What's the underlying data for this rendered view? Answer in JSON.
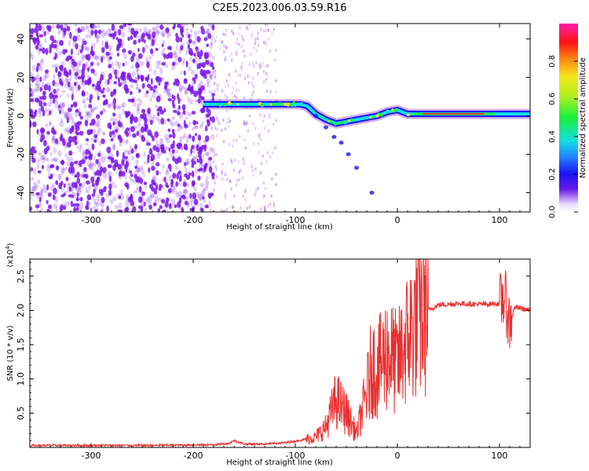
{
  "figure": {
    "title": "C2E5.2023.006.03.59.R16"
  },
  "colors": {
    "signal_line": "#e8302f",
    "noise": "#7a18e8",
    "axes": "#000000"
  },
  "chart_data": [
    {
      "type": "heatmap",
      "xlabel": "Height of straight line (km)",
      "ylabel": "Frequency (Hz)",
      "xlim": [
        -360,
        130
      ],
      "ylim": [
        -50,
        48
      ],
      "xticks": [
        -300,
        -200,
        -100,
        0,
        100
      ],
      "yticks": [
        -40,
        -20,
        0,
        20,
        40
      ],
      "colorbar": {
        "label": "Normalized spectral amplitude",
        "range": [
          0,
          1
        ],
        "ticks": [
          "0.0",
          "0.2",
          "0.4",
          "0.6",
          "0.8"
        ],
        "colormap": "rainbow (white at 0 to magenta at 1)"
      },
      "signal_track": [
        {
          "x": -190,
          "y": 6
        },
        {
          "x": -170,
          "y": 6
        },
        {
          "x": -150,
          "y": 6
        },
        {
          "x": -130,
          "y": 6
        },
        {
          "x": -110,
          "y": 6
        },
        {
          "x": -95,
          "y": 6
        },
        {
          "x": -88,
          "y": 5
        },
        {
          "x": -80,
          "y": 1
        },
        {
          "x": -70,
          "y": -2
        },
        {
          "x": -60,
          "y": -4
        },
        {
          "x": -50,
          "y": -3
        },
        {
          "x": -40,
          "y": -2
        },
        {
          "x": -30,
          "y": -1
        },
        {
          "x": -20,
          "y": 0
        },
        {
          "x": -10,
          "y": 2
        },
        {
          "x": 0,
          "y": 3
        },
        {
          "x": 10,
          "y": 1
        },
        {
          "x": 20,
          "y": 1
        },
        {
          "x": 50,
          "y": 1
        },
        {
          "x": 80,
          "y": 1
        },
        {
          "x": 100,
          "y": 1
        },
        {
          "x": 130,
          "y": 1
        }
      ]
    },
    {
      "type": "line",
      "xlabel": "Height of straight line (km)",
      "ylabel": "SNR (10 * v/v)",
      "scale_label": "(x10",
      "scale_exp": "4",
      "xlim": [
        -360,
        130
      ],
      "ylim": [
        0,
        2.75
      ],
      "xticks": [
        -300,
        -200,
        -100,
        0,
        100
      ],
      "yticks": [
        0.5,
        1.0,
        1.5,
        2.0,
        2.5
      ],
      "series": [
        {
          "x": [
            -360,
            -300,
            -240,
            -180,
            -165,
            -160,
            -150,
            -130,
            -110,
            -100,
            -80,
            -70,
            -60,
            -50,
            -40,
            -30,
            -25,
            -20,
            -10,
            0,
            10,
            20,
            30,
            40,
            60,
            80,
            100,
            105,
            110,
            115,
            130
          ],
          "y": [
            0.03,
            0.03,
            0.03,
            0.04,
            0.06,
            0.1,
            0.05,
            0.05,
            0.07,
            0.09,
            0.15,
            0.3,
            0.7,
            0.5,
            0.2,
            0.8,
            1.2,
            1.1,
            1.4,
            1.2,
            1.6,
            1.9,
            2.0,
            2.08,
            2.1,
            2.09,
            2.1,
            2.2,
            1.8,
            2.05,
            2.0
          ]
        }
      ]
    }
  ]
}
